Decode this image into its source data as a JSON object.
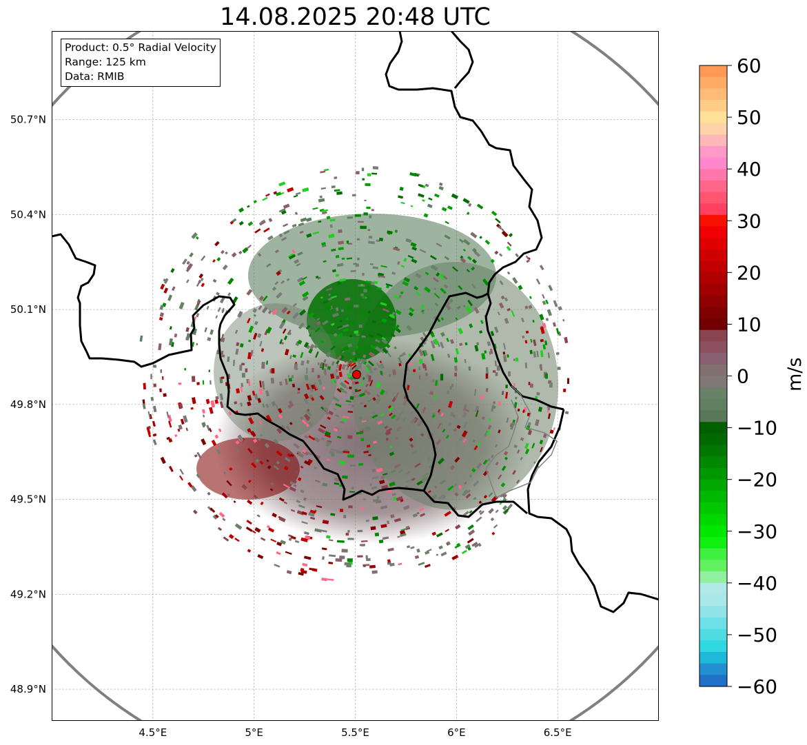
{
  "title": "14.08.2025 20:48 UTC",
  "info": {
    "product": "Product: 0.5° Radial Velocity",
    "range": "Range: 125 km",
    "data": "Data: RMIB"
  },
  "map": {
    "lon_range": [
      4.0,
      7.0
    ],
    "lat_range": [
      48.8,
      50.98
    ],
    "lon_ticks": [
      {
        "value": 4.5,
        "label": "4.5°E"
      },
      {
        "value": 5.0,
        "label": "5°E"
      },
      {
        "value": 5.5,
        "label": "5.5°E"
      },
      {
        "value": 6.0,
        "label": "6°E"
      },
      {
        "value": 6.5,
        "label": "6.5°E"
      }
    ],
    "lat_ticks": [
      {
        "value": 50.7,
        "label": "50.7°N"
      },
      {
        "value": 50.4,
        "label": "50.4°N"
      },
      {
        "value": 50.1,
        "label": "50.1°N"
      },
      {
        "value": 49.8,
        "label": "49.8°N"
      },
      {
        "value": 49.5,
        "label": "49.5°N"
      },
      {
        "value": 49.2,
        "label": "49.2°N"
      },
      {
        "value": 48.9,
        "label": "48.9°N"
      }
    ],
    "grid": true,
    "radar_site": {
      "lon": 5.505,
      "lat": 49.915
    },
    "range_circle_color": "#808080",
    "radar_color": "#e00000"
  },
  "colorbar": {
    "label": "m/s",
    "min": -60,
    "max": 60,
    "ticks": [
      60,
      50,
      40,
      30,
      20,
      10,
      0,
      -10,
      -20,
      -30,
      -40,
      -50,
      -60
    ],
    "tick_labels": [
      "60",
      "50",
      "40",
      "30",
      "20",
      "10",
      "0",
      "−10",
      "−20",
      "−30",
      "−40",
      "−50",
      "−60"
    ],
    "colors_top_to_bottom": [
      "#ff9955",
      "#ffaa66",
      "#ffbb77",
      "#ffcc88",
      "#ffe099",
      "#ffd3a8",
      "#ffb8b8",
      "#ff99c8",
      "#ff88cc",
      "#ff77aa",
      "#ff6688",
      "#ff5570",
      "#ff4060",
      "#f81000",
      "#f00000",
      "#e00000",
      "#d00000",
      "#c00000",
      "#b00000",
      "#a00000",
      "#900000",
      "#800000",
      "#700000",
      "#8a4450",
      "#8c5060",
      "#886070",
      "#807070",
      "#807878",
      "#6a8068",
      "#608060",
      "#587858",
      "#006000",
      "#006a00",
      "#007800",
      "#008800",
      "#009800",
      "#00a800",
      "#00b800",
      "#00c800",
      "#00d800",
      "#00e800",
      "#10f010",
      "#40f040",
      "#60f060",
      "#90f0a0",
      "#b0e8e8",
      "#a8e8e8",
      "#90e4e8",
      "#70e0e8",
      "#50dce0",
      "#30d8e0",
      "#20b8d8",
      "#2090d0",
      "#2070c8"
    ]
  }
}
